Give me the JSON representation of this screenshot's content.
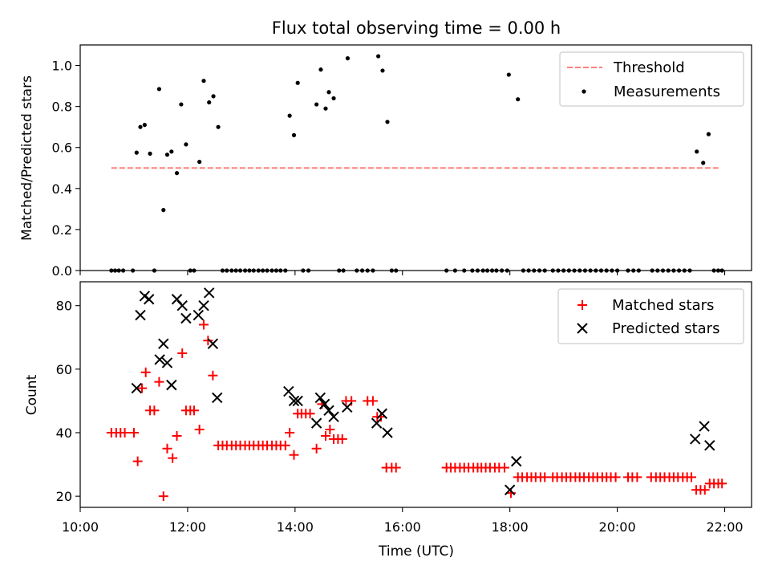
{
  "title": "Flux total observing time = 0.00 h",
  "colors": {
    "threshold": "#ff7f7f",
    "measurement": "#000000",
    "matched": "#ff0000",
    "predicted": "#000000"
  },
  "chart_data": [
    {
      "type": "scatter",
      "title": "Flux total observing time = 0.00 h",
      "xlabel": "",
      "ylabel": "Matched/Predicted stars",
      "xlim": [
        10.0,
        22.5
      ],
      "ylim": [
        0.0,
        1.1
      ],
      "yticks": [
        0.0,
        0.2,
        0.4,
        0.6,
        0.8,
        1.0
      ],
      "yticklabels": [
        "0.0",
        "0.2",
        "0.4",
        "0.6",
        "0.8",
        "1.0"
      ],
      "legend_position": "top-right",
      "threshold": {
        "name": "Threshold",
        "value": 0.5,
        "x_range": [
          10.58,
          21.88
        ],
        "style": "dashed"
      },
      "series": [
        {
          "name": "Measurements",
          "marker": "dot",
          "points": [
            [
              10.58,
              0
            ],
            [
              10.65,
              0
            ],
            [
              10.72,
              0
            ],
            [
              10.8,
              0
            ],
            [
              10.98,
              0
            ],
            [
              11.05,
              0.575
            ],
            [
              11.12,
              0.7
            ],
            [
              11.2,
              0.71
            ],
            [
              11.3,
              0.57
            ],
            [
              11.38,
              0
            ],
            [
              11.47,
              0.885
            ],
            [
              11.55,
              0.295
            ],
            [
              11.62,
              0.565
            ],
            [
              11.7,
              0.58
            ],
            [
              11.8,
              0.475
            ],
            [
              11.88,
              0.81
            ],
            [
              11.97,
              0.615
            ],
            [
              12.05,
              0
            ],
            [
              12.12,
              0
            ],
            [
              12.22,
              0.53
            ],
            [
              12.3,
              0.925
            ],
            [
              12.4,
              0.82
            ],
            [
              12.48,
              0.85
            ],
            [
              12.57,
              0.7
            ],
            [
              12.65,
              0
            ],
            [
              12.73,
              0
            ],
            [
              12.82,
              0
            ],
            [
              12.9,
              0
            ],
            [
              12.98,
              0
            ],
            [
              13.07,
              0
            ],
            [
              13.15,
              0
            ],
            [
              13.23,
              0
            ],
            [
              13.32,
              0
            ],
            [
              13.4,
              0
            ],
            [
              13.48,
              0
            ],
            [
              13.57,
              0
            ],
            [
              13.65,
              0
            ],
            [
              13.73,
              0
            ],
            [
              13.82,
              0
            ],
            [
              13.9,
              0.755
            ],
            [
              13.98,
              0.66
            ],
            [
              14.05,
              0.915
            ],
            [
              14.15,
              0
            ],
            [
              14.25,
              0
            ],
            [
              14.4,
              0.81
            ],
            [
              14.48,
              0.98
            ],
            [
              14.57,
              0.79
            ],
            [
              14.63,
              0.87
            ],
            [
              14.72,
              0.84
            ],
            [
              14.82,
              0
            ],
            [
              14.9,
              0
            ],
            [
              14.98,
              1.035
            ],
            [
              15.15,
              0
            ],
            [
              15.25,
              0
            ],
            [
              15.35,
              0
            ],
            [
              15.45,
              0
            ],
            [
              15.55,
              1.045
            ],
            [
              15.63,
              0.975
            ],
            [
              15.72,
              0.725
            ],
            [
              15.8,
              0
            ],
            [
              15.88,
              0
            ],
            [
              16.82,
              0
            ],
            [
              16.98,
              0
            ],
            [
              17.15,
              0
            ],
            [
              17.3,
              0
            ],
            [
              17.4,
              0
            ],
            [
              17.5,
              0
            ],
            [
              17.58,
              0
            ],
            [
              17.67,
              0
            ],
            [
              17.75,
              0
            ],
            [
              17.85,
              0
            ],
            [
              17.95,
              0
            ],
            [
              17.98,
              0.955
            ],
            [
              18.15,
              0.835
            ],
            [
              18.25,
              0
            ],
            [
              18.35,
              0
            ],
            [
              18.45,
              0
            ],
            [
              18.55,
              0
            ],
            [
              18.65,
              0
            ],
            [
              18.8,
              0
            ],
            [
              18.9,
              0
            ],
            [
              19.0,
              0
            ],
            [
              19.1,
              0
            ],
            [
              19.2,
              0
            ],
            [
              19.3,
              0
            ],
            [
              19.4,
              0
            ],
            [
              19.5,
              0
            ],
            [
              19.6,
              0
            ],
            [
              19.7,
              0
            ],
            [
              19.8,
              0
            ],
            [
              19.9,
              0
            ],
            [
              20.0,
              0
            ],
            [
              20.2,
              0
            ],
            [
              20.3,
              0
            ],
            [
              20.4,
              0
            ],
            [
              20.65,
              0
            ],
            [
              20.75,
              0
            ],
            [
              20.85,
              0
            ],
            [
              20.95,
              0
            ],
            [
              21.05,
              0
            ],
            [
              21.15,
              0
            ],
            [
              21.25,
              0
            ],
            [
              21.35,
              0
            ],
            [
              21.48,
              0.58
            ],
            [
              21.6,
              0.525
            ],
            [
              21.7,
              0.665
            ],
            [
              21.8,
              0
            ],
            [
              21.88,
              0
            ],
            [
              21.95,
              0
            ]
          ]
        }
      ]
    },
    {
      "type": "scatter",
      "title": "",
      "xlabel": "Time (UTC)",
      "ylabel": "Count",
      "xlim": [
        10.0,
        22.5
      ],
      "ylim": [
        16.5,
        87.5
      ],
      "xticks": [
        10,
        12,
        14,
        16,
        18,
        20,
        22
      ],
      "xticklabels": [
        "10:00",
        "12:00",
        "14:00",
        "16:00",
        "18:00",
        "20:00",
        "22:00"
      ],
      "yticks": [
        20,
        40,
        60,
        80
      ],
      "yticklabels": [
        "20",
        "40",
        "60",
        "80"
      ],
      "legend_position": "top-right",
      "series": [
        {
          "name": "Matched stars",
          "marker": "plus",
          "color": "#ff0000",
          "points": [
            [
              10.58,
              40
            ],
            [
              10.67,
              40
            ],
            [
              10.75,
              40
            ],
            [
              10.83,
              40
            ],
            [
              11.0,
              40
            ],
            [
              11.07,
              31
            ],
            [
              11.15,
              54
            ],
            [
              11.22,
              59
            ],
            [
              11.3,
              47
            ],
            [
              11.38,
              47
            ],
            [
              11.47,
              56
            ],
            [
              11.55,
              20
            ],
            [
              11.62,
              35
            ],
            [
              11.72,
              32
            ],
            [
              11.8,
              39
            ],
            [
              11.9,
              65
            ],
            [
              11.97,
              47
            ],
            [
              12.05,
              47
            ],
            [
              12.12,
              47
            ],
            [
              12.22,
              41
            ],
            [
              12.3,
              74
            ],
            [
              12.38,
              69
            ],
            [
              12.47,
              58
            ],
            [
              12.57,
              36
            ],
            [
              12.65,
              36
            ],
            [
              12.73,
              36
            ],
            [
              12.82,
              36
            ],
            [
              12.9,
              36
            ],
            [
              12.98,
              36
            ],
            [
              13.07,
              36
            ],
            [
              13.15,
              36
            ],
            [
              13.23,
              36
            ],
            [
              13.32,
              36
            ],
            [
              13.4,
              36
            ],
            [
              13.48,
              36
            ],
            [
              13.57,
              36
            ],
            [
              13.65,
              36
            ],
            [
              13.73,
              36
            ],
            [
              13.82,
              36
            ],
            [
              13.9,
              40
            ],
            [
              13.98,
              33
            ],
            [
              14.05,
              46
            ],
            [
              14.12,
              46
            ],
            [
              14.2,
              46
            ],
            [
              14.28,
              46
            ],
            [
              14.4,
              35
            ],
            [
              14.5,
              49
            ],
            [
              14.57,
              39
            ],
            [
              14.65,
              41
            ],
            [
              14.72,
              38
            ],
            [
              14.8,
              38
            ],
            [
              14.88,
              38
            ],
            [
              14.95,
              50
            ],
            [
              15.05,
              50
            ],
            [
              15.35,
              50
            ],
            [
              15.45,
              50
            ],
            [
              15.53,
              45
            ],
            [
              15.6,
              45
            ],
            [
              15.7,
              29
            ],
            [
              15.8,
              29
            ],
            [
              15.88,
              29
            ],
            [
              16.82,
              29
            ],
            [
              16.9,
              29
            ],
            [
              16.98,
              29
            ],
            [
              17.07,
              29
            ],
            [
              17.15,
              29
            ],
            [
              17.23,
              29
            ],
            [
              17.32,
              29
            ],
            [
              17.4,
              29
            ],
            [
              17.47,
              29
            ],
            [
              17.55,
              29
            ],
            [
              17.63,
              29
            ],
            [
              17.72,
              29
            ],
            [
              17.8,
              29
            ],
            [
              17.9,
              29
            ],
            [
              18.02,
              21
            ],
            [
              18.15,
              26
            ],
            [
              18.23,
              26
            ],
            [
              18.32,
              26
            ],
            [
              18.4,
              26
            ],
            [
              18.48,
              26
            ],
            [
              18.57,
              26
            ],
            [
              18.65,
              26
            ],
            [
              18.8,
              26
            ],
            [
              18.88,
              26
            ],
            [
              18.97,
              26
            ],
            [
              19.05,
              26
            ],
            [
              19.13,
              26
            ],
            [
              19.22,
              26
            ],
            [
              19.3,
              26
            ],
            [
              19.38,
              26
            ],
            [
              19.47,
              26
            ],
            [
              19.55,
              26
            ],
            [
              19.63,
              26
            ],
            [
              19.72,
              26
            ],
            [
              19.8,
              26
            ],
            [
              19.88,
              26
            ],
            [
              19.97,
              26
            ],
            [
              20.2,
              26
            ],
            [
              20.28,
              26
            ],
            [
              20.37,
              26
            ],
            [
              20.63,
              26
            ],
            [
              20.72,
              26
            ],
            [
              20.8,
              26
            ],
            [
              20.88,
              26
            ],
            [
              20.97,
              26
            ],
            [
              21.05,
              26
            ],
            [
              21.13,
              26
            ],
            [
              21.22,
              26
            ],
            [
              21.3,
              26
            ],
            [
              21.38,
              26
            ],
            [
              21.47,
              22
            ],
            [
              21.55,
              22
            ],
            [
              21.63,
              22
            ],
            [
              21.72,
              24
            ],
            [
              21.8,
              24
            ],
            [
              21.88,
              24
            ],
            [
              21.95,
              24
            ]
          ]
        },
        {
          "name": "Predicted stars",
          "marker": "x",
          "color": "#000000",
          "points": [
            [
              11.05,
              54
            ],
            [
              11.12,
              77
            ],
            [
              11.2,
              83
            ],
            [
              11.28,
              82
            ],
            [
              11.48,
              63
            ],
            [
              11.55,
              68
            ],
            [
              11.62,
              62
            ],
            [
              11.7,
              55
            ],
            [
              11.8,
              82
            ],
            [
              11.9,
              80
            ],
            [
              11.97,
              76
            ],
            [
              12.2,
              77
            ],
            [
              12.3,
              80
            ],
            [
              12.4,
              84
            ],
            [
              12.47,
              68
            ],
            [
              12.55,
              51
            ],
            [
              13.88,
              53
            ],
            [
              13.98,
              50
            ],
            [
              14.05,
              50
            ],
            [
              14.4,
              43
            ],
            [
              14.47,
              51
            ],
            [
              14.55,
              49
            ],
            [
              14.63,
              47
            ],
            [
              14.72,
              45
            ],
            [
              14.97,
              48
            ],
            [
              15.52,
              43
            ],
            [
              15.62,
              46
            ],
            [
              15.72,
              40
            ],
            [
              18.0,
              22
            ],
            [
              18.12,
              31
            ],
            [
              21.45,
              38
            ],
            [
              21.62,
              42
            ],
            [
              21.72,
              36
            ]
          ]
        }
      ]
    }
  ]
}
